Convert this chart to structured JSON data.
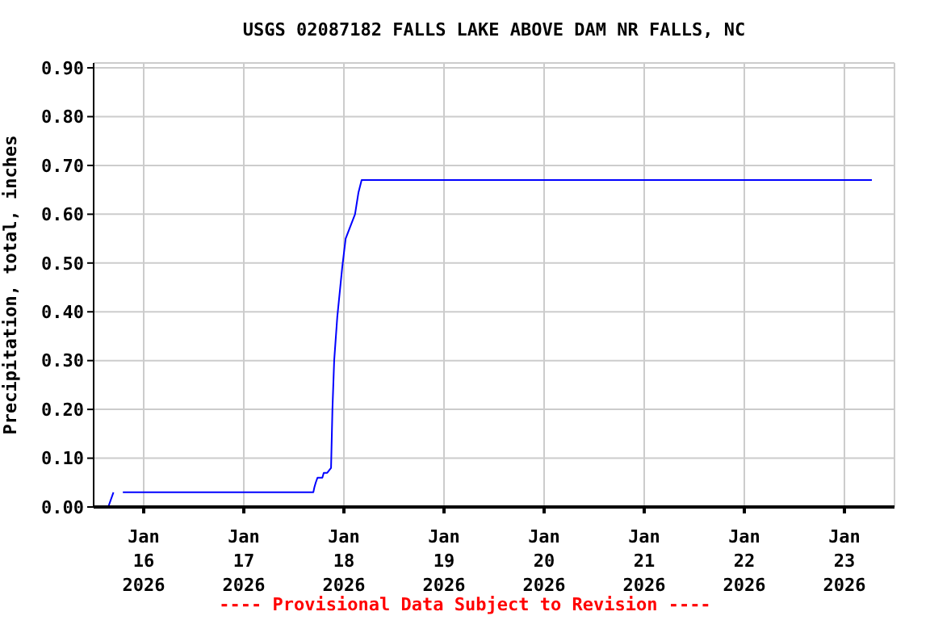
{
  "chart_data": {
    "type": "line",
    "title": "USGS 02087182 FALLS LAKE ABOVE DAM NR FALLS, NC",
    "ylabel": "Precipitation, total, inches",
    "annotations": [
      "---- Provisional Data Subject to Revision ----"
    ],
    "x": [
      "2026-01-15T12:00",
      "2026-01-15T15:30",
      "2026-01-15T16:45",
      "2026-01-15T18:00",
      "2026-01-15T19:00",
      "2026-01-17T16:40",
      "2026-01-17T16:55",
      "2026-01-17T17:15",
      "2026-01-17T17:40",
      "2026-01-17T18:50",
      "2026-01-17T19:10",
      "2026-01-17T20:00",
      "2026-01-17T20:55",
      "2026-01-17T21:15",
      "2026-01-17T21:40",
      "2026-01-17T22:25",
      "2026-01-17T23:35",
      "2026-01-18T00:25",
      "2026-01-18T02:40",
      "2026-01-18T03:30",
      "2026-01-18T04:15",
      "2026-01-23T06:35"
    ],
    "series": [
      {
        "color": "#0000ff",
        "values": [
          0,
          0,
          0.03,
          null,
          0.03,
          0.03,
          0.04,
          0.05,
          0.06,
          0.06,
          0.07,
          0.07,
          0.08,
          0.2,
          0.3,
          0.39,
          0.49,
          0.55,
          0.6,
          0.645,
          0.67,
          0.67
        ]
      }
    ],
    "xlim": [
      "2026-01-15T12:00",
      "2026-01-23T12:00"
    ],
    "xticks": [
      {
        "value": "2026-01-16T00:00",
        "label": "Jan\n16\n2026"
      },
      {
        "value": "2026-01-17T00:00",
        "label": "Jan\n17\n2026"
      },
      {
        "value": "2026-01-18T00:00",
        "label": "Jan\n18\n2026"
      },
      {
        "value": "2026-01-19T00:00",
        "label": "Jan\n19\n2026"
      },
      {
        "value": "2026-01-20T00:00",
        "label": "Jan\n20\n2026"
      },
      {
        "value": "2026-01-21T00:00",
        "label": "Jan\n21\n2026"
      },
      {
        "value": "2026-01-22T00:00",
        "label": "Jan\n22\n2026"
      },
      {
        "value": "2026-01-23T00:00",
        "label": "Jan\n23\n2026"
      }
    ],
    "ylim": [
      0,
      0.91
    ],
    "yticks": [
      {
        "value": 0,
        "label": "0.00"
      },
      {
        "value": 0.1,
        "label": "0.10"
      },
      {
        "value": 0.2,
        "label": "0.20"
      },
      {
        "value": 0.3,
        "label": "0.30"
      },
      {
        "value": 0.4,
        "label": "0.40"
      },
      {
        "value": 0.5,
        "label": "0.50"
      },
      {
        "value": 0.6,
        "label": "0.60"
      },
      {
        "value": 0.7,
        "label": "0.70"
      },
      {
        "value": 0.8,
        "label": "0.80"
      },
      {
        "value": 0.9,
        "label": "0.90"
      }
    ],
    "grid": true,
    "legend": false,
    "marker": "none",
    "line_style": "solid"
  }
}
